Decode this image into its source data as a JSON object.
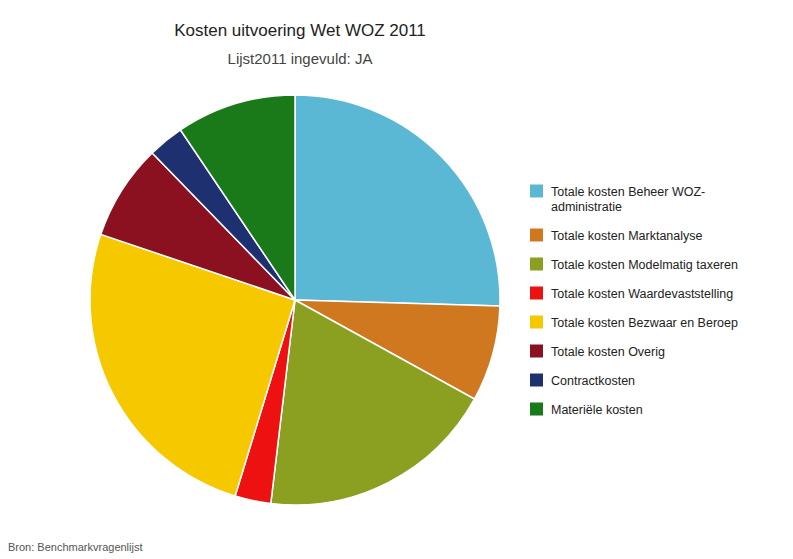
{
  "chart_data": {
    "type": "pie",
    "title": "Kosten uitvoering Wet WOZ 2011",
    "subtitle": "Lijst2011 ingevuld: JA",
    "annotations": [
      "Bron: Benchmarkvragenlijst"
    ],
    "categories": [
      "Totale kosten Beheer WOZ-\nadministratie",
      "Totale kosten Marktanalyse",
      "Totale kosten Modelmatig taxeren",
      "Totale kosten Waardevaststelling",
      "Totale kosten Bezwaar en Beroep",
      "Totale kosten Overig",
      "Contractkosten",
      "Materiële kosten"
    ],
    "values": [
      27,
      8,
      20,
      3,
      27,
      8,
      3,
      10
    ],
    "colors": [
      "#5BB8D4",
      "#D07820",
      "#8BA020",
      "#EE1111",
      "#F5C800",
      "#8B1020",
      "#1F3070",
      "#1A7A1A"
    ],
    "legend": "right"
  }
}
